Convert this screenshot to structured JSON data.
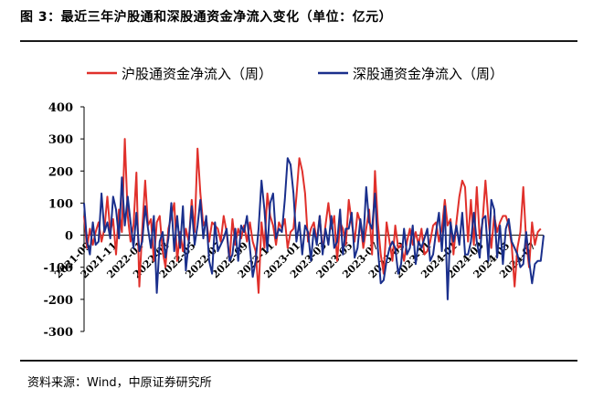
{
  "figure": {
    "title": "图 3：最近三年沪股通和深股通资金净流入变化（单位：亿元）",
    "source": "资料来源：Wind，中原证券研究所"
  },
  "chart_data": {
    "type": "line",
    "ylim": [
      -300,
      400
    ],
    "yticks": [
      400,
      300,
      200,
      100,
      0,
      -100,
      -200,
      -300
    ],
    "grid": false,
    "legend_position": "top",
    "x_tick_labels": [
      "2021-09",
      "2021-11",
      "2022-01",
      "2022-03",
      "2022-05",
      "2022-07",
      "2022-09",
      "2022-11",
      "2023-01",
      "2023-03",
      "2023-05",
      "2023-07",
      "2023-09",
      "2023-11",
      "2024-01",
      "2024-03",
      "2024-05",
      "2024-07"
    ],
    "series": [
      {
        "name": "沪股通资金净流入（周）",
        "color": "#e0302b",
        "values": [
          60,
          -40,
          20,
          -30,
          10,
          40,
          -20,
          20,
          120,
          10,
          50,
          -60,
          80,
          10,
          300,
          60,
          -20,
          30,
          195,
          -160,
          20,
          170,
          30,
          50,
          -80,
          40,
          60,
          -50,
          -100,
          20,
          60,
          100,
          -80,
          10,
          -50,
          20,
          -20,
          110,
          10,
          270,
          130,
          30,
          50,
          -20,
          40,
          30,
          20,
          -20,
          60,
          10,
          -80,
          50,
          -30,
          20,
          -10,
          30,
          -20,
          40,
          -20,
          -50,
          -180,
          40,
          -40,
          130,
          60,
          30,
          -30,
          40,
          20,
          50,
          -40,
          10,
          20,
          120,
          240,
          200,
          130,
          -20,
          20,
          40,
          -20,
          60,
          -50,
          30,
          100,
          20,
          60,
          -80,
          40,
          20,
          -30,
          110,
          40,
          -20,
          70,
          40,
          -40,
          20,
          80,
          -60,
          200,
          40,
          -60,
          -120,
          40,
          -20,
          -80,
          30,
          -40,
          -30,
          -80,
          -20,
          20,
          -30,
          10,
          -30,
          20,
          -60,
          -50,
          -20,
          30,
          40,
          -20,
          20,
          110,
          30,
          50,
          -60,
          40,
          120,
          170,
          150,
          -20,
          110,
          -30,
          150,
          -10,
          40,
          170,
          50,
          -40,
          60,
          10,
          40,
          60,
          60,
          30,
          -30,
          -160,
          -40,
          10,
          150,
          -20,
          -100,
          40,
          -30,
          10,
          20
        ]
      },
      {
        "name": "深股通资金净流入（周）",
        "color": "#1a2f8c",
        "values": [
          100,
          -20,
          -60,
          40,
          -30,
          -20,
          130,
          10,
          40,
          -10,
          120,
          80,
          -10,
          180,
          30,
          120,
          40,
          -40,
          70,
          -50,
          -20,
          90,
          20,
          -40,
          60,
          -180,
          -20,
          10,
          -70,
          -10,
          100,
          -50,
          60,
          -40,
          90,
          -110,
          -20,
          90,
          -30,
          30,
          110,
          -10,
          60,
          -80,
          -120,
          40,
          -50,
          -30,
          -10,
          20,
          -80,
          -60,
          20,
          -80,
          30,
          10,
          60,
          -40,
          -130,
          -80,
          20,
          170,
          80,
          -50,
          100,
          130,
          -10,
          20,
          10,
          110,
          240,
          220,
          130,
          -20,
          40,
          -60,
          30,
          10,
          -80,
          20,
          -30,
          60,
          -60,
          20,
          -30,
          60,
          -40,
          -20,
          80,
          -60,
          20,
          20,
          70,
          -70,
          -40,
          50,
          -20,
          150,
          40,
          20,
          130,
          -40,
          -150,
          -140,
          -80,
          -40,
          -20,
          -40,
          -120,
          -90,
          20,
          -60,
          -40,
          30,
          -90,
          -20,
          -40,
          -10,
          20,
          -80,
          -60,
          10,
          70,
          -50,
          90,
          -200,
          40,
          -20,
          30,
          -30,
          70,
          -60,
          -60,
          -20,
          70,
          -20,
          -70,
          50,
          60,
          -80,
          110,
          80,
          -70,
          30,
          -90,
          20,
          50,
          -20,
          -40,
          -60,
          -100,
          -90,
          10,
          -80,
          -150,
          -90,
          -80,
          -80,
          0
        ]
      }
    ]
  }
}
